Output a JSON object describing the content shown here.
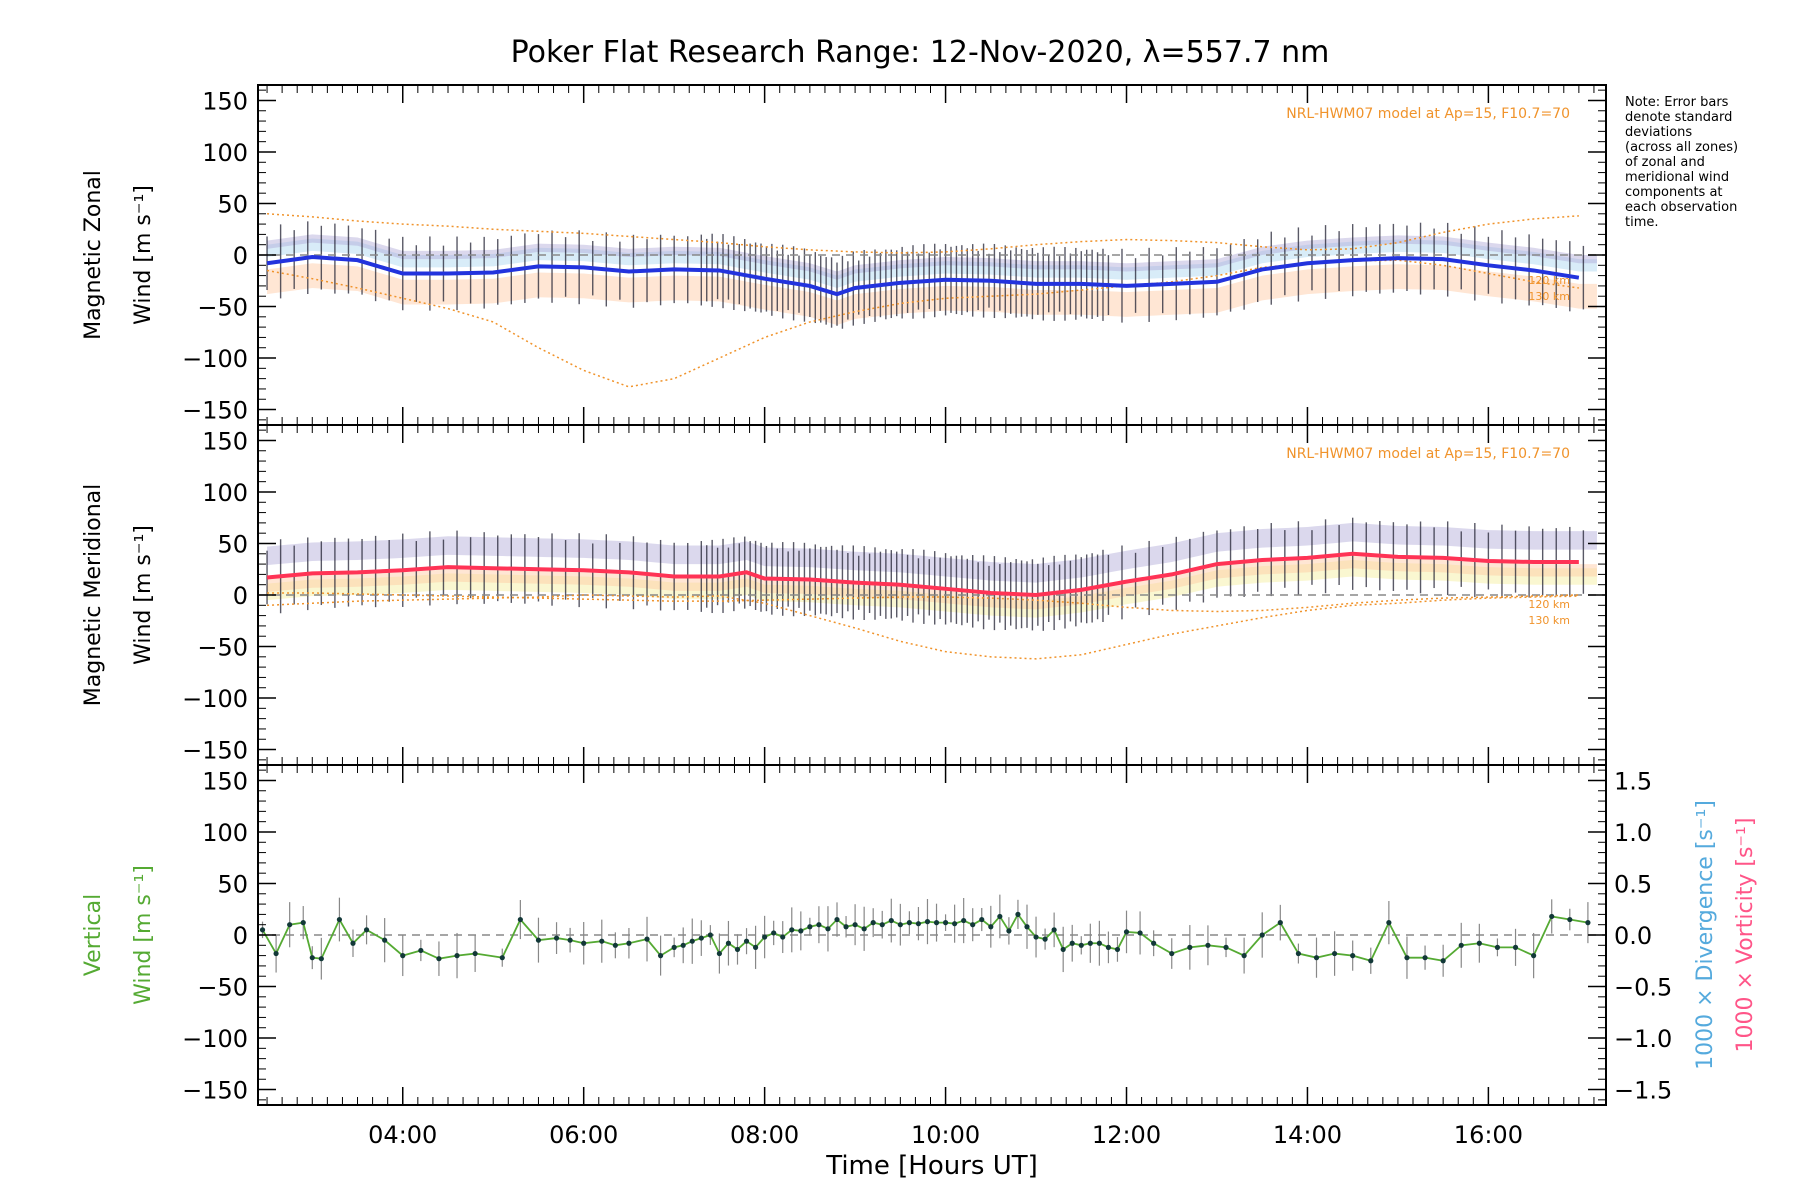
{
  "figure": {
    "title": "Poker Flat Research Range: 12-Nov-2020, λ=557.7 nm",
    "note_lines": [
      "Note: Error bars",
      "denote standard",
      "deviations",
      "(across all zones)",
      "of zonal and",
      "meridional wind",
      "components at",
      "each observation",
      "time."
    ],
    "model_label": "NRL-HWM07 model at Ap=15, F10.7=70",
    "alt_labels": [
      "120 km",
      "130 km"
    ],
    "xlabel": "Time [Hours UT]"
  },
  "colors": {
    "zonal_mean": "#2233dd",
    "meridional_mean": "#ff3355",
    "vertical": "#55aa33",
    "vertical_points": "#123838",
    "model": "#f0932b",
    "divergence_label": "#55aadd",
    "vorticity_label": "#ff5588",
    "errorbar": "#222233",
    "zone_purple": "#b0a8d8",
    "zone_orange": "#ffc8a0",
    "zone_yellow": "#f4ee9a",
    "zone_lightblue": "#a8d4f0"
  },
  "chart_data": [
    {
      "type": "line",
      "panel": "zonal",
      "ylabel_lines": [
        "Magnetic Zonal",
        "Wind [m s⁻¹]"
      ],
      "xlim": [
        2.4,
        17.3
      ],
      "ylim": [
        -165,
        165
      ],
      "yticks": [
        "150",
        "100",
        "50",
        "0",
        "−50",
        "−100",
        "−150"
      ],
      "ytick_values": [
        150,
        100,
        50,
        0,
        -50,
        -100,
        -150
      ],
      "series": [
        {
          "x": [
            2.5,
            3.0,
            3.5,
            4.0,
            4.5,
            5.0,
            5.5,
            6.0,
            6.5,
            7.0,
            7.5,
            8.0,
            8.5,
            8.8,
            9.0,
            9.5,
            10.0,
            10.5,
            11.0,
            11.5,
            12.0,
            12.5,
            13.0,
            13.5,
            14.0,
            14.5,
            15.0,
            15.5,
            16.0,
            16.5,
            17.0
          ],
          "y": [
            -8,
            -2,
            -5,
            -18,
            -18,
            -17,
            -11,
            -12,
            -16,
            -14,
            -15,
            -23,
            -30,
            -38,
            -32,
            -27,
            -24,
            -25,
            -28,
            -28,
            -30,
            -28,
            -26,
            -14,
            -8,
            -5,
            -3,
            -4,
            -10,
            -15,
            -22
          ]
        },
        {
          "x": [
            2.5,
            3.0,
            3.5,
            4.0,
            4.5,
            5.0,
            5.5,
            6.0,
            6.5,
            7.0,
            7.5,
            8.0,
            8.5,
            9.0,
            9.5,
            10.0,
            10.5,
            11.0,
            11.5,
            12.0,
            12.5,
            13.0,
            13.5,
            14.0,
            14.5,
            15.0,
            15.5,
            16.0,
            16.5,
            17.0
          ],
          "y": [
            -15,
            -23,
            -32,
            -42,
            -52,
            -65,
            -90,
            -112,
            -128,
            -120,
            -100,
            -80,
            -65,
            -55,
            -47,
            -42,
            -40,
            -38,
            -34,
            -30,
            -26,
            -20,
            -12,
            -8,
            -6,
            -5,
            -10,
            -18,
            -26,
            -32
          ]
        },
        {
          "x": [
            2.5,
            3.0,
            3.5,
            4.0,
            4.5,
            5.0,
            5.5,
            6.0,
            6.5,
            7.0,
            7.5,
            8.0,
            8.5,
            9.0,
            9.5,
            10.0,
            10.5,
            11.0,
            11.5,
            12.0,
            12.5,
            13.0,
            13.5,
            14.0,
            14.5,
            15.0,
            15.5,
            16.0,
            16.5,
            17.0
          ],
          "y": [
            40,
            37,
            33,
            30,
            28,
            25,
            23,
            21,
            18,
            15,
            12,
            8,
            5,
            3,
            2,
            3,
            6,
            10,
            13,
            15,
            14,
            12,
            8,
            5,
            6,
            12,
            22,
            30,
            35,
            38
          ]
        }
      ]
    },
    {
      "type": "line",
      "panel": "meridional",
      "ylabel_lines": [
        "Magnetic Meridional",
        "Wind [m s⁻¹]"
      ],
      "xlim": [
        2.4,
        17.3
      ],
      "ylim": [
        -165,
        165
      ],
      "yticks": [
        "150",
        "100",
        "50",
        "0",
        "−50",
        "−100",
        "−150"
      ],
      "ytick_values": [
        150,
        100,
        50,
        0,
        -50,
        -100,
        -150
      ],
      "series": [
        {
          "x": [
            2.5,
            3.0,
            3.5,
            4.0,
            4.5,
            5.0,
            5.5,
            6.0,
            6.5,
            7.0,
            7.5,
            7.8,
            8.0,
            8.5,
            9.0,
            9.5,
            10.0,
            10.5,
            11.0,
            11.5,
            12.0,
            12.5,
            13.0,
            13.5,
            14.0,
            14.5,
            15.0,
            15.5,
            16.0,
            16.5,
            17.0
          ],
          "y": [
            17,
            21,
            22,
            24,
            27,
            26,
            25,
            24,
            22,
            18,
            18,
            22,
            16,
            15,
            12,
            10,
            6,
            2,
            0,
            5,
            13,
            20,
            30,
            34,
            36,
            40,
            37,
            36,
            33,
            32,
            32
          ]
        },
        {
          "x": [
            2.5,
            3.0,
            3.5,
            4.0,
            4.5,
            5.0,
            5.5,
            6.0,
            6.5,
            7.0,
            7.5,
            8.0,
            8.5,
            9.0,
            9.5,
            10.0,
            10.5,
            11.0,
            11.5,
            12.0,
            12.5,
            13.0,
            13.5,
            14.0,
            14.5,
            15.0,
            15.5,
            16.0,
            16.5,
            17.0
          ],
          "y": [
            -10,
            -8,
            -6,
            -5,
            -4,
            -3,
            -2,
            0,
            -1,
            -2,
            -1,
            -8,
            -20,
            -32,
            -45,
            -55,
            -60,
            -62,
            -58,
            -48,
            -38,
            -30,
            -22,
            -15,
            -10,
            -8,
            -5,
            -3,
            -2,
            -1
          ]
        },
        {
          "x": [
            2.5,
            3.0,
            3.5,
            4.0,
            4.5,
            5.0,
            5.5,
            6.0,
            6.5,
            7.0,
            7.5,
            8.0,
            8.5,
            9.0,
            9.5,
            10.0,
            10.5,
            11.0,
            11.5,
            12.0,
            12.5,
            13.0,
            13.5,
            14.0,
            14.5,
            15.0,
            15.5,
            16.0,
            16.5,
            17.0
          ],
          "y": [
            2,
            2,
            1,
            0,
            -1,
            -2,
            -3,
            -4,
            -5,
            -6,
            -6,
            -5,
            -4,
            -3,
            -2,
            -2,
            -3,
            -5,
            -8,
            -12,
            -15,
            -16,
            -15,
            -12,
            -8,
            -5,
            -3,
            -2,
            -1,
            0
          ]
        }
      ]
    },
    {
      "type": "line",
      "panel": "vertical",
      "ylabel_lines": [
        "Vertical",
        "Wind [m s⁻¹]"
      ],
      "y2label_lines": [
        "1000 × Divergence [s⁻¹]",
        "1000 × Vorticity [s⁻¹]"
      ],
      "xlim": [
        2.4,
        17.3
      ],
      "ylim": [
        -165,
        165
      ],
      "yticks": [
        "150",
        "100",
        "50",
        "0",
        "−50",
        "−100",
        "−150"
      ],
      "ytick_values": [
        150,
        100,
        50,
        0,
        -50,
        -100,
        -150
      ],
      "y2ticks": [
        "1.5",
        "1.0",
        "0.5",
        "0.0",
        "−0.5",
        "−1.0",
        "−1.5"
      ],
      "y2tick_values": [
        1.5,
        1.0,
        0.5,
        0.0,
        -0.5,
        -1.0,
        -1.5
      ],
      "y2lim": [
        -1.65,
        1.65
      ],
      "xticks": [
        "04:00",
        "06:00",
        "08:00",
        "10:00",
        "12:00",
        "14:00",
        "16:00"
      ],
      "xtick_values": [
        4,
        6,
        8,
        10,
        12,
        14,
        16
      ],
      "series": [
        {
          "x": [
            2.45,
            2.6,
            2.75,
            2.9,
            3.0,
            3.1,
            3.3,
            3.45,
            3.6,
            3.8,
            4.0,
            4.2,
            4.4,
            4.6,
            4.8,
            5.1,
            5.3,
            5.5,
            5.7,
            5.85,
            6.0,
            6.2,
            6.35,
            6.5,
            6.7,
            6.85,
            7.0,
            7.1,
            7.2,
            7.3,
            7.4,
            7.5,
            7.6,
            7.7,
            7.8,
            7.9,
            8.0,
            8.1,
            8.2,
            8.3,
            8.4,
            8.5,
            8.6,
            8.7,
            8.8,
            8.9,
            9.0,
            9.1,
            9.2,
            9.3,
            9.4,
            9.5,
            9.6,
            9.7,
            9.8,
            9.9,
            10.0,
            10.1,
            10.2,
            10.3,
            10.4,
            10.5,
            10.6,
            10.7,
            10.8,
            10.9,
            11.0,
            11.1,
            11.2,
            11.3,
            11.4,
            11.5,
            11.6,
            11.7,
            11.8,
            11.9,
            12.0,
            12.15,
            12.3,
            12.5,
            12.7,
            12.9,
            13.1,
            13.3,
            13.5,
            13.7,
            13.9,
            14.1,
            14.3,
            14.5,
            14.7,
            14.9,
            15.1,
            15.3,
            15.5,
            15.7,
            15.9,
            16.1,
            16.3,
            16.5,
            16.7,
            16.9,
            17.1
          ],
          "y": [
            5,
            -18,
            10,
            12,
            -22,
            -23,
            15,
            -8,
            5,
            -5,
            -20,
            -15,
            -23,
            -20,
            -18,
            -22,
            15,
            -5,
            -3,
            -5,
            -8,
            -6,
            -10,
            -8,
            -4,
            -20,
            -12,
            -10,
            -6,
            -3,
            0,
            -18,
            -8,
            -14,
            -6,
            -12,
            -2,
            2,
            -2,
            5,
            4,
            8,
            10,
            6,
            15,
            8,
            10,
            6,
            12,
            10,
            14,
            10,
            12,
            11,
            13,
            12,
            12,
            11,
            14,
            10,
            15,
            8,
            18,
            4,
            20,
            8,
            -2,
            -4,
            5,
            -14,
            -8,
            -10,
            -8,
            -8,
            -12,
            -14,
            3,
            2,
            -8,
            -18,
            -12,
            -10,
            -12,
            -20,
            0,
            12,
            -18,
            -22,
            -18,
            -20,
            -25,
            12,
            -22,
            -22,
            -25,
            -10,
            -8,
            -12,
            -12,
            -20,
            18,
            15,
            12
          ]
        }
      ]
    }
  ]
}
